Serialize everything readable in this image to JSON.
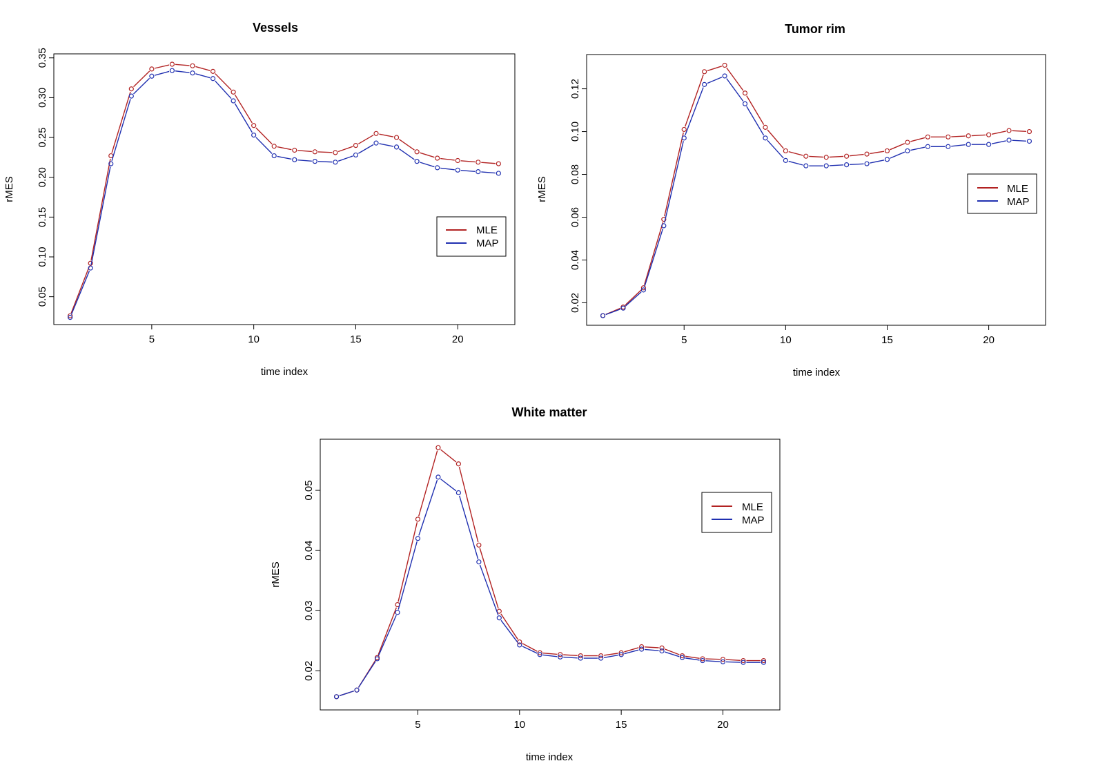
{
  "chart_data": [
    {
      "type": "line",
      "title": "Vessels",
      "xlabel": "time index",
      "ylabel": "rMES",
      "x": [
        1,
        2,
        3,
        4,
        5,
        6,
        7,
        8,
        9,
        10,
        11,
        12,
        13,
        14,
        15,
        16,
        17,
        18,
        19,
        20,
        21,
        22
      ],
      "xlim": [
        0.2,
        22.8
      ],
      "ylim": [
        0.015,
        0.355
      ],
      "xticks": [
        5,
        10,
        15,
        20
      ],
      "xtick_labels": [
        "5",
        "10",
        "15",
        "20"
      ],
      "yticks": [
        0.05,
        0.1,
        0.15,
        0.2,
        0.25,
        0.3,
        0.35
      ],
      "ytick_labels": [
        "0.05",
        "0.10",
        "0.15",
        "0.20",
        "0.25",
        "0.30",
        "0.35"
      ],
      "legend": "right",
      "series": [
        {
          "name": "MLE",
          "color": "#b22222",
          "values": [
            0.026,
            0.092,
            0.227,
            0.311,
            0.336,
            0.342,
            0.34,
            0.333,
            0.307,
            0.265,
            0.239,
            0.234,
            0.232,
            0.231,
            0.24,
            0.255,
            0.25,
            0.232,
            0.224,
            0.221,
            0.219,
            0.217
          ]
        },
        {
          "name": "MAP",
          "color": "#1f2fb0",
          "values": [
            0.024,
            0.086,
            0.217,
            0.302,
            0.327,
            0.334,
            0.331,
            0.324,
            0.296,
            0.253,
            0.227,
            0.222,
            0.22,
            0.219,
            0.228,
            0.243,
            0.238,
            0.22,
            0.212,
            0.209,
            0.207,
            0.205
          ]
        }
      ]
    },
    {
      "type": "line",
      "title": "Tumor rim",
      "xlabel": "time index",
      "ylabel": "rMES",
      "x": [
        1,
        2,
        3,
        4,
        5,
        6,
        7,
        8,
        9,
        10,
        11,
        12,
        13,
        14,
        15,
        16,
        17,
        18,
        19,
        20,
        21,
        22
      ],
      "xlim": [
        0.2,
        22.8
      ],
      "ylim": [
        0.0095,
        0.136
      ],
      "xticks": [
        5,
        10,
        15,
        20
      ],
      "xtick_labels": [
        "5",
        "10",
        "15",
        "20"
      ],
      "yticks": [
        0.02,
        0.04,
        0.06,
        0.08,
        0.1,
        0.12
      ],
      "ytick_labels": [
        "0.02",
        "0.04",
        "0.06",
        "0.08",
        "0.10",
        "0.12"
      ],
      "legend": "right",
      "series": [
        {
          "name": "MLE",
          "color": "#b22222",
          "values": [
            0.014,
            0.018,
            0.027,
            0.059,
            0.101,
            0.128,
            0.131,
            0.118,
            0.102,
            0.091,
            0.0885,
            0.088,
            0.0885,
            0.0895,
            0.091,
            0.095,
            0.0975,
            0.0975,
            0.098,
            0.0985,
            0.1005,
            0.1
          ]
        },
        {
          "name": "MAP",
          "color": "#1f2fb0",
          "values": [
            0.014,
            0.0175,
            0.026,
            0.056,
            0.097,
            0.122,
            0.126,
            0.113,
            0.097,
            0.0865,
            0.084,
            0.084,
            0.0845,
            0.085,
            0.087,
            0.091,
            0.093,
            0.093,
            0.094,
            0.094,
            0.096,
            0.0955
          ]
        }
      ]
    },
    {
      "type": "line",
      "title": "White matter",
      "xlabel": "time index",
      "ylabel": "rMES",
      "x": [
        1,
        2,
        3,
        4,
        5,
        6,
        7,
        8,
        9,
        10,
        11,
        12,
        13,
        14,
        15,
        16,
        17,
        18,
        19,
        20,
        21,
        22
      ],
      "xlim": [
        0.2,
        22.8
      ],
      "ylim": [
        0.0135,
        0.0585
      ],
      "xticks": [
        5,
        10,
        15,
        20
      ],
      "xtick_labels": [
        "5",
        "10",
        "15",
        "20"
      ],
      "yticks": [
        0.02,
        0.03,
        0.04,
        0.05
      ],
      "ytick_labels": [
        "0.02",
        "0.03",
        "0.04",
        "0.05"
      ],
      "legend": "right",
      "series": [
        {
          "name": "MLE",
          "color": "#b22222",
          "values": [
            0.0157,
            0.0168,
            0.0222,
            0.031,
            0.0452,
            0.0571,
            0.0544,
            0.0409,
            0.0299,
            0.0248,
            0.023,
            0.0227,
            0.0225,
            0.0225,
            0.023,
            0.024,
            0.0238,
            0.0225,
            0.022,
            0.0219,
            0.0217,
            0.0217
          ]
        },
        {
          "name": "MAP",
          "color": "#1f2fb0",
          "values": [
            0.0157,
            0.0168,
            0.022,
            0.0297,
            0.042,
            0.0522,
            0.0496,
            0.0381,
            0.0288,
            0.0243,
            0.0227,
            0.0223,
            0.0221,
            0.0221,
            0.0227,
            0.0236,
            0.0233,
            0.0222,
            0.0217,
            0.0215,
            0.0214,
            0.0214
          ]
        }
      ]
    }
  ]
}
